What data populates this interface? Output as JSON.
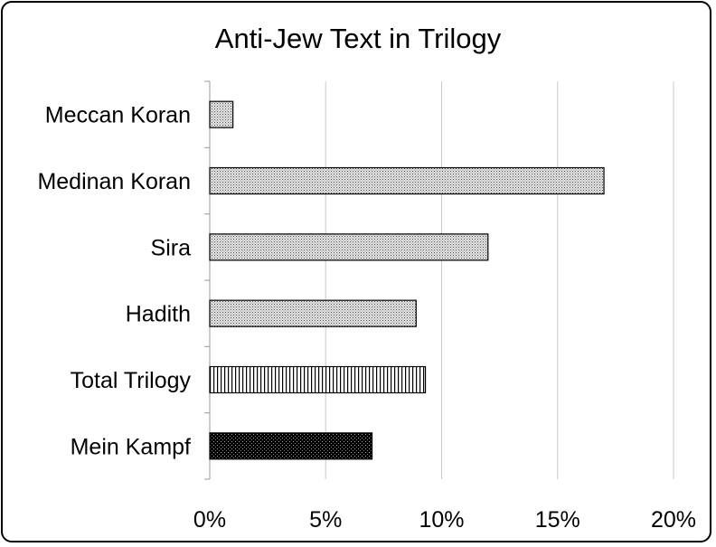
{
  "chart_data": {
    "type": "bar",
    "orientation": "horizontal",
    "title": "Anti-Jew Text in Trilogy",
    "categories": [
      "Meccan Koran",
      "Medinan Koran",
      "Sira",
      "Hadith",
      "Total Trilogy",
      "Mein Kampf"
    ],
    "values": [
      1,
      17,
      12,
      8.9,
      9.3,
      7
    ],
    "value_unit": "%",
    "xlim": [
      0,
      20
    ],
    "x_ticks": [
      "0%",
      "5%",
      "10%",
      "15%",
      "20%"
    ],
    "grid": "vertical",
    "legend": "none",
    "fill_patterns": [
      "dots-light",
      "dots-light",
      "dots-light",
      "dots-light",
      "vertical-stripes",
      "dots-dark"
    ]
  }
}
